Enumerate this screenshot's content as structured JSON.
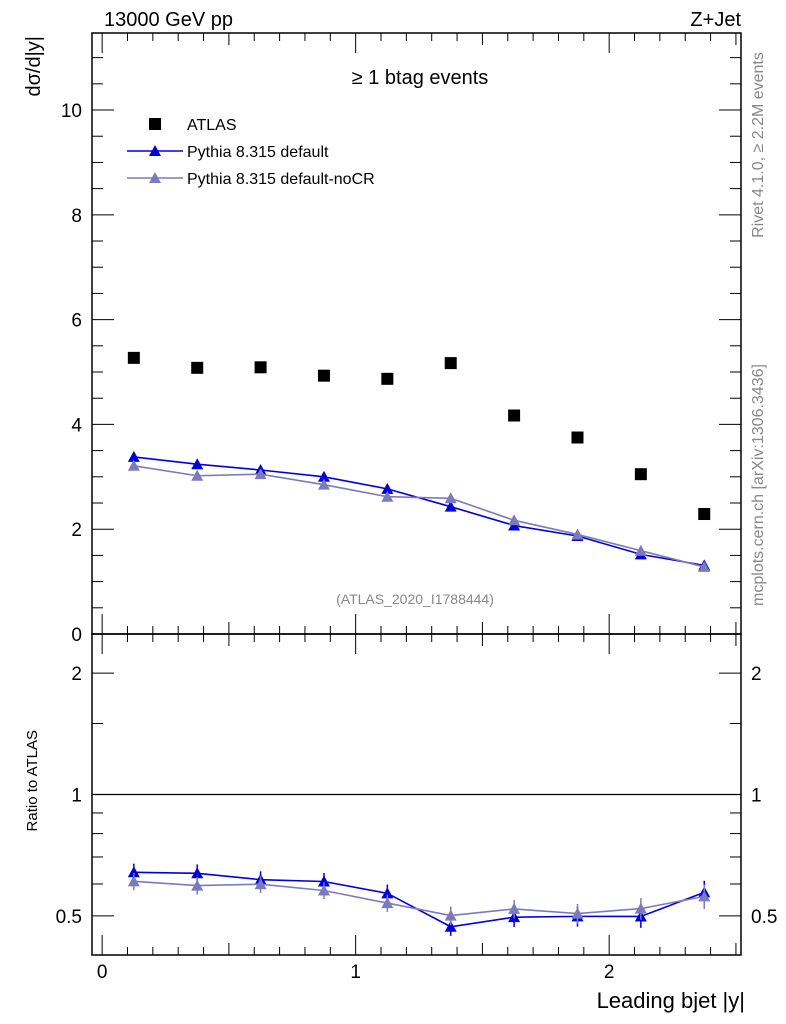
{
  "chart_data": {
    "type": "line",
    "header_left": "13000 GeV pp",
    "header_right": "Z+Jet",
    "title": "≥ 1 btag events",
    "ylabel": "dσ/d|y|",
    "ratio_ylabel": "Ratio to ATLAS",
    "xlabel": "Leading bjet |y|",
    "side_label_top": "Rivet 4.1.0, ≥ 2.2M events",
    "side_label_bottom": "mcplots.cern.ch [arXiv:1306.3436]",
    "analysis_id": "(ATLAS_2020_I1788444)",
    "xlim": [
      -0.04,
      2.52
    ],
    "ylim": [
      0,
      11.47
    ],
    "ratio_ylim": [
      0.4,
      2.5
    ],
    "ratio_scale": "log",
    "x_ticks": [
      "0",
      "1",
      "2"
    ],
    "y_ticks": [
      "0",
      "2",
      "4",
      "6",
      "8",
      "10"
    ],
    "ratio_ticks": [
      "0.5",
      "1",
      "2"
    ],
    "legend_position": "top-left",
    "x": [
      0.125,
      0.375,
      0.625,
      0.875,
      1.125,
      1.375,
      1.625,
      1.875,
      2.125,
      2.375
    ],
    "series": [
      {
        "name": "ATLAS",
        "color": "#000000",
        "marker": "square",
        "values": [
          5.27,
          5.08,
          5.09,
          4.93,
          4.87,
          5.17,
          4.17,
          3.75,
          3.05,
          2.29
        ]
      },
      {
        "name": "Pythia 8.315 default",
        "color": "#0000dd",
        "marker": "triangle",
        "values": [
          3.38,
          3.24,
          3.13,
          3.0,
          2.77,
          2.43,
          2.07,
          1.87,
          1.52,
          1.31
        ],
        "errors": [
          0.07,
          0.07,
          0.06,
          0.06,
          0.06,
          0.05,
          0.05,
          0.05,
          0.05,
          0.05
        ]
      },
      {
        "name": "Pythia 8.315 default-noCR",
        "color": "#7b7bbb",
        "marker": "triangle",
        "values": [
          3.21,
          3.02,
          3.05,
          2.85,
          2.62,
          2.59,
          2.17,
          1.9,
          1.59,
          1.28
        ],
        "errors": [
          0.06,
          0.06,
          0.06,
          0.05,
          0.05,
          0.06,
          0.05,
          0.05,
          0.05,
          0.05
        ]
      }
    ]
  }
}
